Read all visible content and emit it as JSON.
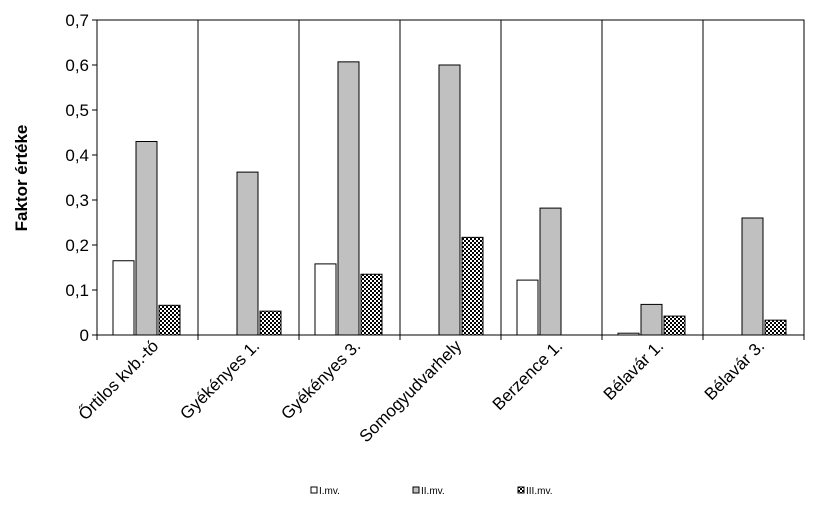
{
  "chart_data": {
    "type": "bar",
    "ylabel": "Faktor értéke",
    "ylim": [
      0,
      0.7
    ],
    "ytick_step": 0.1,
    "ytick_labels": [
      "0",
      "0,1",
      "0,2",
      "0,3",
      "0,4",
      "0,5",
      "0,6",
      "0,7"
    ],
    "categories": [
      "Őrtilos kvb.-tó",
      "Gyékényes 1.",
      "Gyékényes 3.",
      "Somogyudvarhely",
      "Berzence 1.",
      "Bélavár 1.",
      "Bélavár 3."
    ],
    "series": [
      {
        "name": "I.mv.",
        "values": [
          0.165,
          0,
          0.158,
          0,
          0.122,
          0.004,
          0
        ],
        "fill": "#ffffff"
      },
      {
        "name": "II.mv.",
        "values": [
          0.43,
          0.362,
          0.607,
          0.6,
          0.282,
          0.068,
          0.26
        ],
        "fill": "#c0c0c0"
      },
      {
        "name": "III.mv.",
        "values": [
          0.066,
          0.053,
          0.135,
          0.217,
          0,
          0.042,
          0.033
        ],
        "fill": "checker"
      }
    ],
    "grid": "vertical",
    "legend_position": "bottom"
  }
}
